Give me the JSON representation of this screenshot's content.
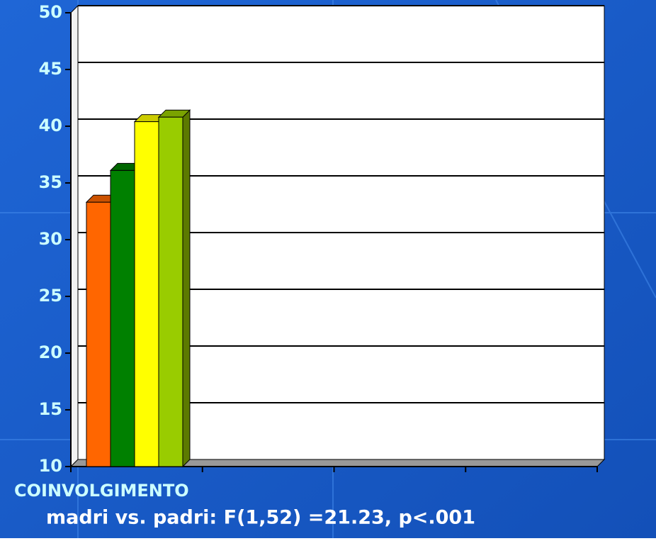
{
  "chart_data": {
    "type": "bar3d",
    "categories": [
      "COINVOLGIMENTO",
      null,
      null,
      null
    ],
    "series": [
      {
        "color": "#ff6600",
        "values": [
          33.3,
          null,
          null,
          null
        ]
      },
      {
        "color": "#008000",
        "values": [
          36.1,
          null,
          null,
          null
        ]
      },
      {
        "color": "#ffff00",
        "values": [
          40.4,
          null,
          null,
          null
        ]
      },
      {
        "color": "#99cc00",
        "values": [
          40.8,
          null,
          null,
          null
        ]
      }
    ],
    "ylim": [
      10,
      50
    ],
    "yticks": [
      10,
      15,
      20,
      25,
      30,
      35,
      40,
      45,
      50
    ],
    "grid": true,
    "annotation": "madri vs. padri: F(1,52) =21.23, p<.001"
  }
}
